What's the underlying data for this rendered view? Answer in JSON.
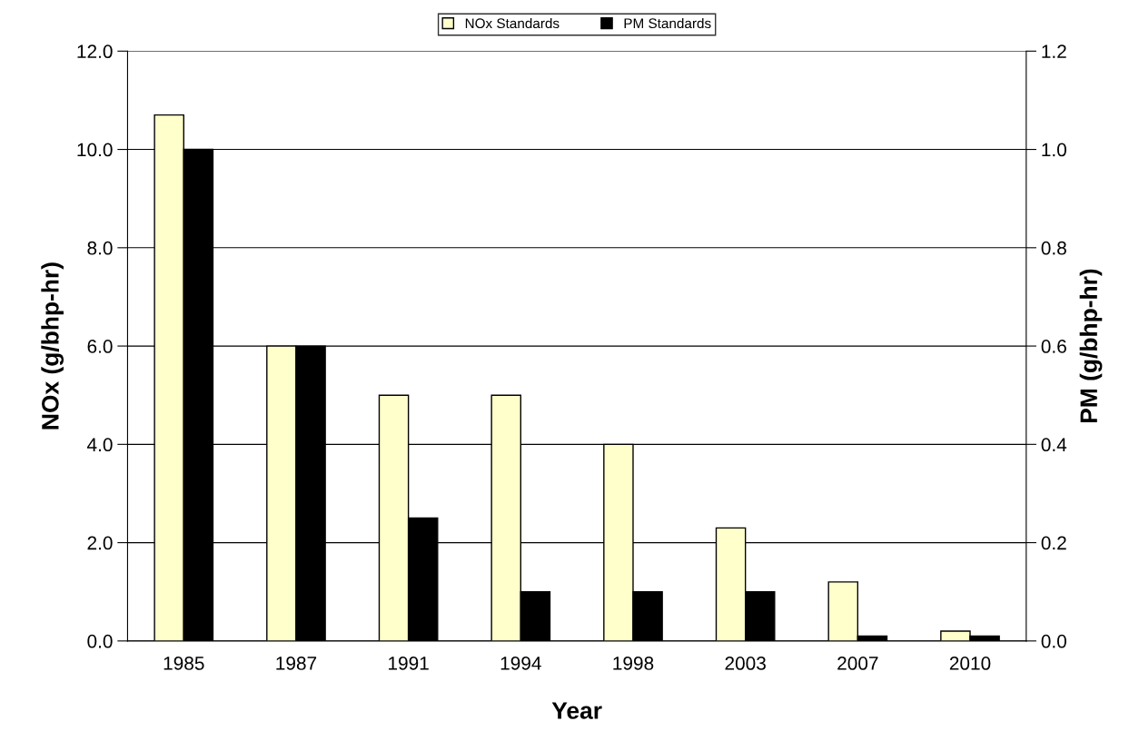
{
  "chart_data": {
    "type": "bar",
    "xlabel": "Year",
    "ylabel": "NOx (g/bhp-hr)",
    "y2label": "PM (g/bhp-hr)",
    "categories": [
      "1985",
      "1987",
      "1991",
      "1994",
      "1998",
      "2003",
      "2007",
      "2010"
    ],
    "series": [
      {
        "name": "NOx Standards",
        "color": "#ffffcc",
        "values": [
          10.7,
          6.0,
          5.0,
          5.0,
          4.0,
          2.3,
          1.2,
          0.2
        ]
      },
      {
        "name": "PM Standards",
        "color": "#000000",
        "axis": "y2",
        "values": [
          1.0,
          0.6,
          0.25,
          0.1,
          0.1,
          0.1,
          0.01,
          0.01
        ]
      }
    ],
    "ylim": [
      0,
      12
    ],
    "yticks": [
      {
        "value": 0,
        "label": "0.0"
      },
      {
        "value": 2,
        "label": "2.0"
      },
      {
        "value": 4,
        "label": "4.0"
      },
      {
        "value": 6,
        "label": "6.0"
      },
      {
        "value": 8,
        "label": "8.0"
      },
      {
        "value": 10,
        "label": "10.0"
      },
      {
        "value": 12,
        "label": "12.0"
      }
    ],
    "y2lim": [
      0,
      1.2
    ],
    "y2ticks": [
      {
        "value": 0,
        "label": "0.0"
      },
      {
        "value": 0.2,
        "label": "0.2"
      },
      {
        "value": 0.4,
        "label": "0.4"
      },
      {
        "value": 0.6,
        "label": "0.6"
      },
      {
        "value": 0.8,
        "label": "0.8"
      },
      {
        "value": 1.0,
        "label": "1.0"
      },
      {
        "value": 1.2,
        "label": "1.2"
      }
    ],
    "grid": "y",
    "legend": "top"
  }
}
